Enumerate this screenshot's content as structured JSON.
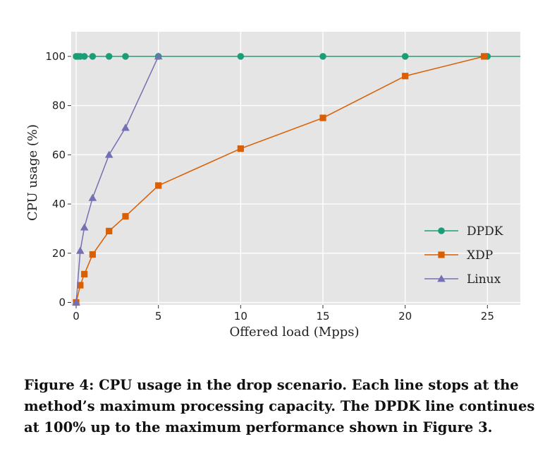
{
  "chart_data": {
    "type": "line",
    "xlabel": "Offered load (Mpps)",
    "ylabel": "CPU usage (%)",
    "xlim": [
      -0.3,
      27.0
    ],
    "ylim": [
      -1,
      110
    ],
    "x_ticks": [
      0,
      5,
      10,
      15,
      20,
      25
    ],
    "y_ticks": [
      0,
      20,
      40,
      60,
      80,
      100
    ],
    "grid": true,
    "background": "#e5e5e5",
    "legend_position": "lower-right",
    "series": [
      {
        "name": "DPDK",
        "color": "#1b9e77",
        "marker": "circle",
        "x": [
          0,
          0.1,
          0.25,
          0.5,
          1,
          2,
          3,
          5,
          10,
          15,
          20,
          25
        ],
        "y": [
          100,
          100,
          100,
          100,
          100,
          100,
          100,
          100,
          100,
          100,
          100,
          100
        ],
        "extends_to_edge": true
      },
      {
        "name": "XDP",
        "color": "#d95f02",
        "marker": "square",
        "x": [
          0,
          0.25,
          0.5,
          1,
          2,
          3,
          5,
          10,
          15,
          20,
          24.8
        ],
        "y": [
          0,
          7,
          11.5,
          19.5,
          29,
          35,
          47.5,
          62.5,
          75,
          92,
          100
        ]
      },
      {
        "name": "Linux",
        "color": "#7570b3",
        "marker": "triangle",
        "x": [
          0,
          0.25,
          0.5,
          1,
          2,
          3,
          5
        ],
        "y": [
          0,
          21,
          30.5,
          42.5,
          60,
          71,
          100
        ]
      }
    ]
  },
  "caption": "Figure 4: CPU usage in the drop scenario. Each line stops at the method’s maximum processing capacity. The DPDK line continues at 100% up to the maximum performance shown in Figure 3."
}
